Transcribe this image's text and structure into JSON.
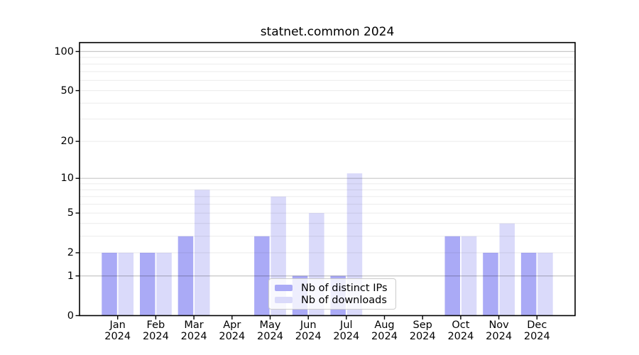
{
  "title": "statnet.common 2024",
  "legend": {
    "items": [
      {
        "label": "Nb of distinct IPs",
        "color": "#aaaaf6"
      },
      {
        "label": "Nb of downloads",
        "color": "#dadafa"
      }
    ]
  },
  "chart_data": {
    "type": "bar",
    "title": "statnet.common 2024",
    "categories": [
      "Jan 2024",
      "Feb 2024",
      "Mar 2024",
      "Apr 2024",
      "May 2024",
      "Jun 2024",
      "Jul 2024",
      "Aug 2024",
      "Sep 2024",
      "Oct 2024",
      "Nov 2024",
      "Dec 2024"
    ],
    "series": [
      {
        "name": "Nb of distinct IPs",
        "color": "#aaaaf6",
        "values": [
          2,
          2,
          3,
          0,
          3,
          1,
          1,
          0,
          0,
          3,
          2,
          2
        ]
      },
      {
        "name": "Nb of downloads",
        "color": "#dadafa",
        "values": [
          2,
          2,
          8,
          0,
          7,
          5,
          11,
          0,
          0,
          3,
          4,
          2
        ]
      }
    ],
    "xlabel": "",
    "ylabel": "",
    "yscale": "log1p",
    "ylim": [
      0,
      117
    ],
    "yticks": [
      0,
      1,
      2,
      5,
      10,
      20,
      50,
      100
    ],
    "gridlines_major": [
      1,
      10,
      100
    ],
    "gridlines_minor": [
      2,
      3,
      4,
      5,
      6,
      7,
      8,
      9,
      20,
      30,
      40,
      50,
      60,
      70,
      80,
      90
    ],
    "grid": true,
    "legend_position": "lower center",
    "axes_color": "#000000",
    "grid_major_color": "rgba(0,0,0,0.22)",
    "grid_minor_color": "rgba(0,0,0,0.08)"
  }
}
